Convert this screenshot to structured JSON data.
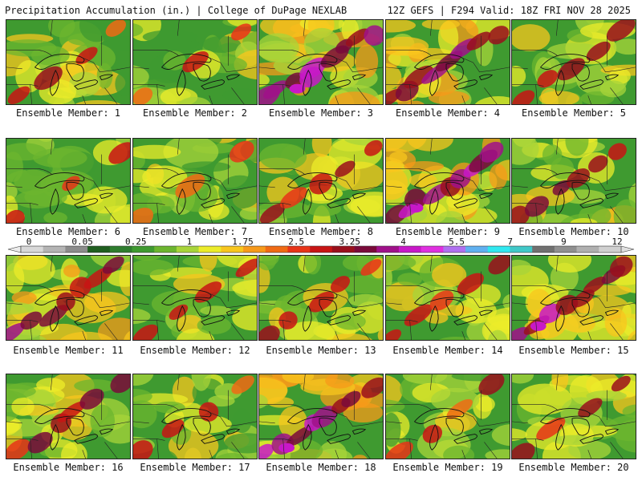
{
  "header": {
    "left_title": "Precipitation Accumulation (in.) | College of DuPage NEXLAB",
    "right_title": "12Z GEFS | F294 Valid: 18Z FRI NOV 28 2025"
  },
  "colorbar": {
    "tick_labels": [
      "0",
      "0.05",
      "0.25",
      "1",
      "1.75",
      "2.5",
      "3.25",
      "4",
      "5.5",
      "7",
      "9",
      "12"
    ],
    "colors": [
      "#d8d8d8",
      "#b4b4b4",
      "#8c8c8c",
      "#1f5e1f",
      "#2e7d2e",
      "#3f9a30",
      "#6cb52f",
      "#a8d43a",
      "#ecec2a",
      "#f8c61e",
      "#f79a1a",
      "#f06a14",
      "#e83418",
      "#c81414",
      "#9a0f1c",
      "#7a0a3a",
      "#a0108a",
      "#c818c8",
      "#e030e0",
      "#b070f0",
      "#60b0f0",
      "#30e8f0",
      "#40c8c8",
      "#707070",
      "#909090",
      "#b0b0b0",
      "#d0d0d0"
    ]
  },
  "members": [
    {
      "label": "Ensemble Member: 1",
      "intensity": 0.35
    },
    {
      "label": "Ensemble Member: 2",
      "intensity": 0.25
    },
    {
      "label": "Ensemble Member: 3",
      "intensity": 0.85
    },
    {
      "label": "Ensemble Member: 4",
      "intensity": 0.75
    },
    {
      "label": "Ensemble Member: 5",
      "intensity": 0.45
    },
    {
      "label": "Ensemble Member: 6",
      "intensity": 0.3
    },
    {
      "label": "Ensemble Member: 7",
      "intensity": 0.28
    },
    {
      "label": "Ensemble Member: 8",
      "intensity": 0.45
    },
    {
      "label": "Ensemble Member: 9",
      "intensity": 0.9
    },
    {
      "label": "Ensemble Member: 10",
      "intensity": 0.55
    },
    {
      "label": "Ensemble Member: 11",
      "intensity": 0.65
    },
    {
      "label": "Ensemble Member: 12",
      "intensity": 0.4
    },
    {
      "label": "Ensemble Member: 13",
      "intensity": 0.5
    },
    {
      "label": "Ensemble Member: 14",
      "intensity": 0.5
    },
    {
      "label": "Ensemble Member: 15",
      "intensity": 0.8
    },
    {
      "label": "Ensemble Member: 16",
      "intensity": 0.55
    },
    {
      "label": "Ensemble Member: 17",
      "intensity": 0.35
    },
    {
      "label": "Ensemble Member: 18",
      "intensity": 0.8
    },
    {
      "label": "Ensemble Member: 19",
      "intensity": 0.35
    },
    {
      "label": "Ensemble Member: 20",
      "intensity": 0.4
    }
  ]
}
